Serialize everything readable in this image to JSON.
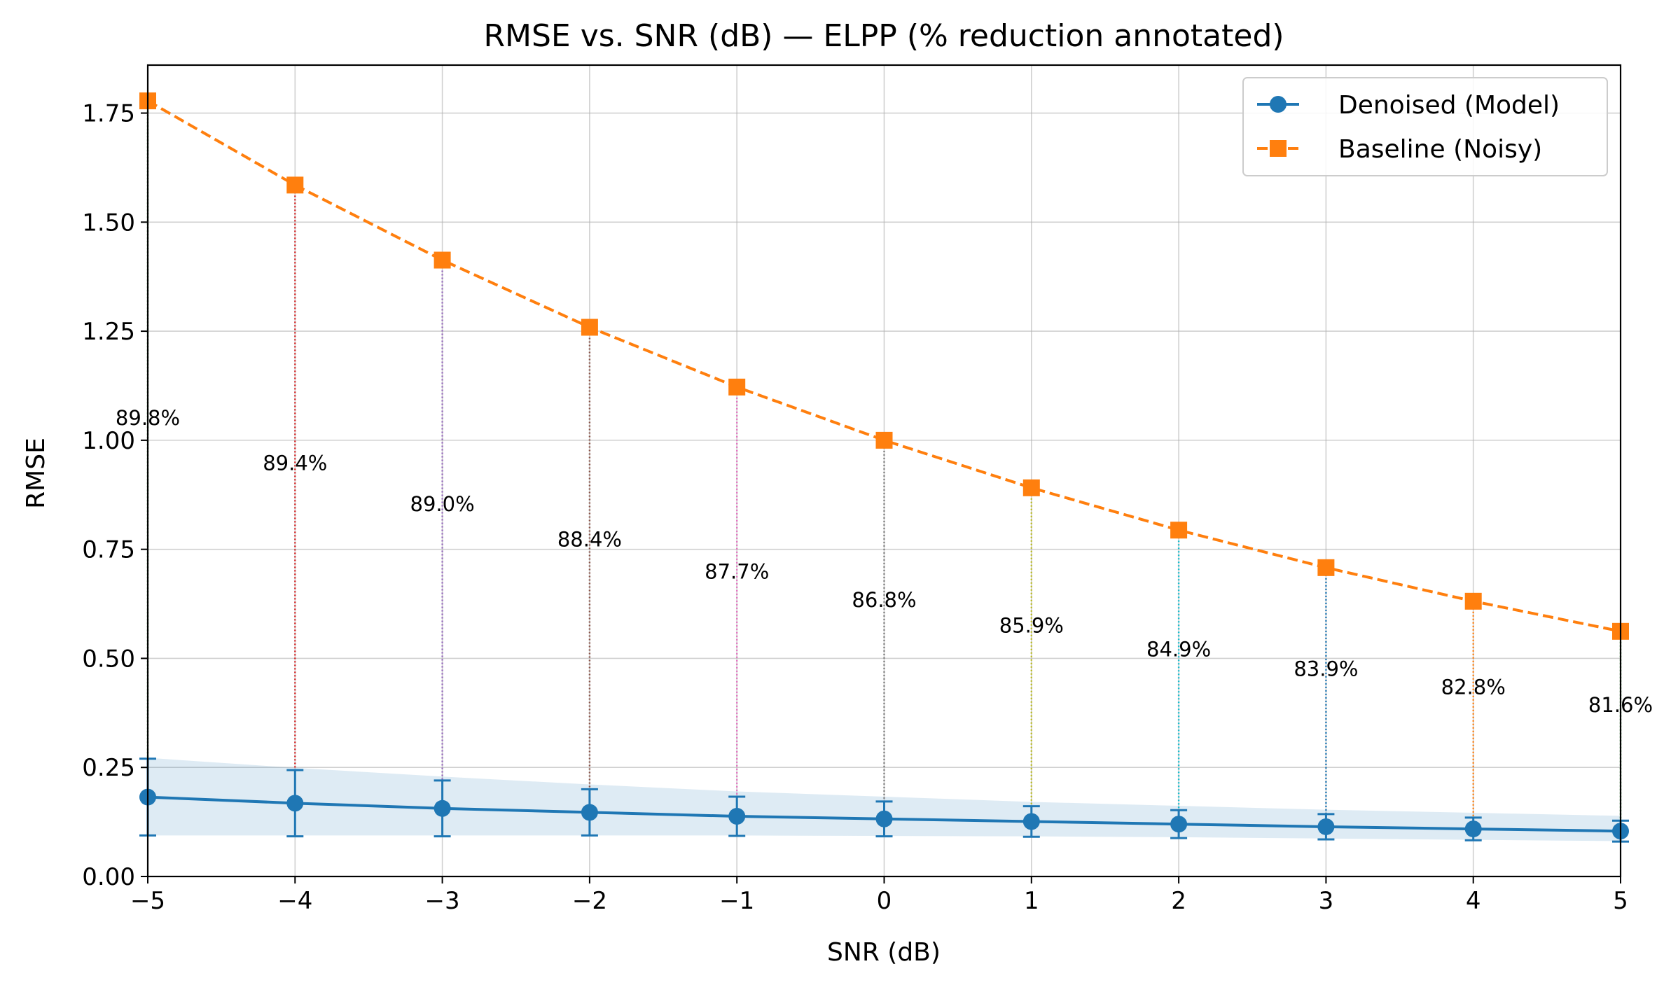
{
  "chart_data": {
    "type": "line",
    "title": "RMSE vs. SNR (dB) — ELPP (% reduction annotated)",
    "xlabel": "SNR (dB)",
    "ylabel": "RMSE",
    "xlim": [
      -5,
      5
    ],
    "ylim": [
      0,
      1.86
    ],
    "x_ticks": [
      "−5",
      "−4",
      "−3",
      "−2",
      "−1",
      "0",
      "1",
      "2",
      "3",
      "4",
      "5"
    ],
    "y_ticks": [
      "0.00",
      "0.25",
      "0.50",
      "0.75",
      "1.00",
      "1.25",
      "1.50",
      "1.75"
    ],
    "x": [
      -5,
      -4,
      -3,
      -2,
      -1,
      0,
      1,
      2,
      3,
      4,
      5
    ],
    "grid": true,
    "legend_position": "top-right",
    "series": [
      {
        "name": "Denoised (Model)",
        "color": "#1f77b4",
        "marker": "circle",
        "linestyle": "solid",
        "values": [
          0.182,
          0.168,
          0.156,
          0.147,
          0.138,
          0.132,
          0.126,
          0.12,
          0.114,
          0.109,
          0.104
        ],
        "error": [
          0.088,
          0.076,
          0.064,
          0.053,
          0.045,
          0.04,
          0.035,
          0.032,
          0.029,
          0.026,
          0.024
        ],
        "band_upper": [
          0.272,
          0.249,
          0.229,
          0.211,
          0.195,
          0.183,
          0.171,
          0.162,
          0.153,
          0.146,
          0.139
        ],
        "band_lower": [
          0.094,
          0.094,
          0.094,
          0.094,
          0.094,
          0.093,
          0.092,
          0.09,
          0.087,
          0.084,
          0.081
        ]
      },
      {
        "name": "Baseline (Noisy)",
        "color": "#ff7f0e",
        "marker": "square",
        "linestyle": "dashed",
        "values": [
          1.778,
          1.585,
          1.413,
          1.259,
          1.122,
          1.0,
          0.891,
          0.794,
          0.708,
          0.631,
          0.562
        ]
      }
    ],
    "annotations": [
      {
        "x": -5,
        "text": "89.8%",
        "y": 1.035,
        "color": "#2ca02c"
      },
      {
        "x": -4,
        "text": "89.4%",
        "y": 0.932,
        "color": "#d62728"
      },
      {
        "x": -3,
        "text": "89.0%",
        "y": 0.838,
        "color": "#9467bd"
      },
      {
        "x": -2,
        "text": "88.4%",
        "y": 0.757,
        "color": "#8c564b"
      },
      {
        "x": -1,
        "text": "87.7%",
        "y": 0.683,
        "color": "#e377c2"
      },
      {
        "x": 0,
        "text": "86.8%",
        "y": 0.618,
        "color": "#7f7f7f"
      },
      {
        "x": 1,
        "text": "85.9%",
        "y": 0.559,
        "color": "#bcbd22"
      },
      {
        "x": 2,
        "text": "84.9%",
        "y": 0.505,
        "color": "#17becf"
      },
      {
        "x": 3,
        "text": "83.9%",
        "y": 0.46,
        "color": "#1f77b4"
      },
      {
        "x": 4,
        "text": "82.8%",
        "y": 0.418,
        "color": "#ff7f0e"
      },
      {
        "x": 5,
        "text": "81.6%",
        "y": 0.377,
        "color": "#2ca02c"
      }
    ]
  }
}
